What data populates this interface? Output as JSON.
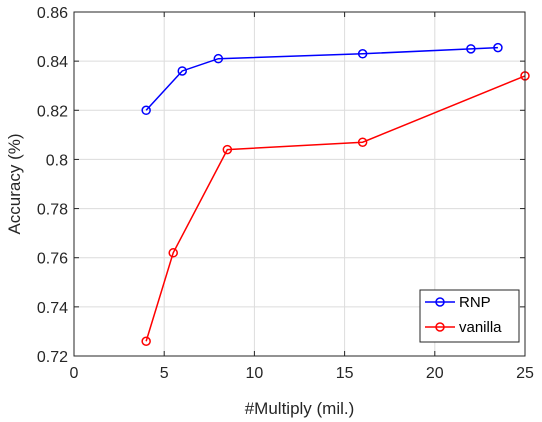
{
  "chart_data": {
    "type": "line",
    "title": "",
    "xlabel": "#Multiply (mil.)",
    "ylabel": "Accuracy (%)",
    "xlim": [
      0,
      25
    ],
    "ylim": [
      0.72,
      0.86
    ],
    "xticks": [
      0,
      5,
      10,
      15,
      20,
      25
    ],
    "yticks": [
      0.72,
      0.74,
      0.76,
      0.78,
      0.8,
      0.82,
      0.84,
      0.86
    ],
    "xtick_labels": [
      "0",
      "5",
      "10",
      "15",
      "20",
      "25"
    ],
    "ytick_labels": [
      "0.72",
      "0.74",
      "0.76",
      "0.78",
      "0.8",
      "0.82",
      "0.84",
      "0.86"
    ],
    "grid": true,
    "legend_position": "bottom-right",
    "series": [
      {
        "name": "RNP",
        "color": "#0000ff",
        "marker": "circle",
        "x": [
          4.0,
          6.0,
          8.0,
          16.0,
          22.0,
          23.5
        ],
        "y": [
          0.82,
          0.836,
          0.841,
          0.843,
          0.845,
          0.8455
        ]
      },
      {
        "name": "vanilla",
        "color": "#ff0000",
        "marker": "circle",
        "x": [
          4.0,
          5.5,
          8.5,
          16.0,
          25.0
        ],
        "y": [
          0.726,
          0.762,
          0.804,
          0.807,
          0.834
        ]
      }
    ]
  }
}
